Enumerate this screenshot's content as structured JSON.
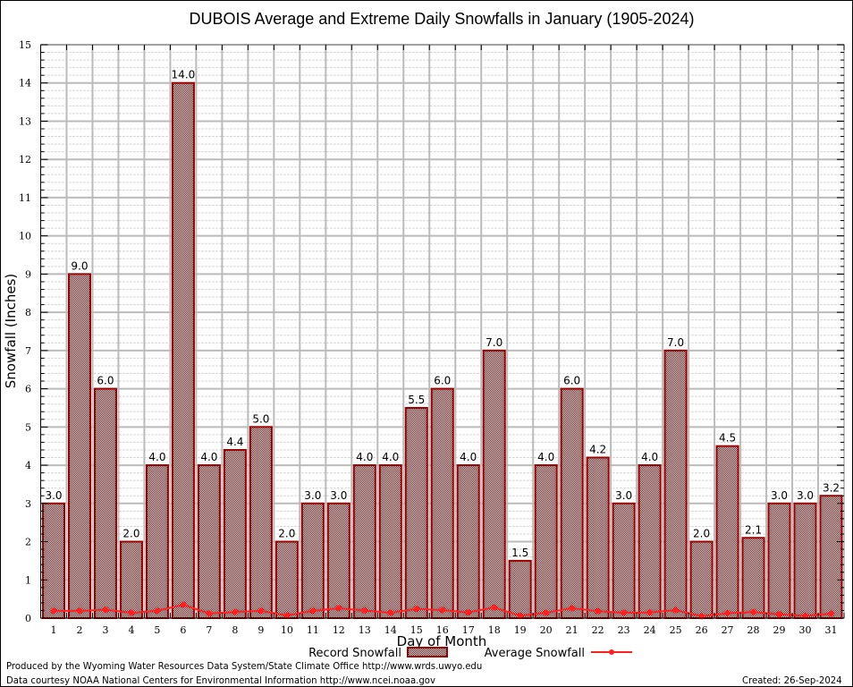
{
  "chart_data": {
    "type": "bar",
    "title": "DUBOIS Average and Extreme Daily Snowfalls in January (1905-2024)",
    "xlabel": "Day of Month",
    "ylabel": "Snowfall (Inches)",
    "ylim": [
      0,
      15
    ],
    "yticks": [
      "0",
      "1",
      "2",
      "3",
      "4",
      "5",
      "6",
      "7",
      "8",
      "9",
      "10",
      "11",
      "12",
      "13",
      "14",
      "15"
    ],
    "grid": true,
    "categories": [
      "1",
      "2",
      "3",
      "4",
      "5",
      "6",
      "7",
      "8",
      "9",
      "10",
      "11",
      "12",
      "13",
      "14",
      "15",
      "16",
      "17",
      "18",
      "19",
      "20",
      "21",
      "22",
      "23",
      "24",
      "25",
      "26",
      "27",
      "28",
      "29",
      "30",
      "31"
    ],
    "series": [
      {
        "name": "Record Snowfall",
        "type": "bar",
        "color": "#990000",
        "values": [
          3.0,
          9.0,
          6.0,
          2.0,
          4.0,
          14.0,
          4.0,
          4.4,
          5.0,
          2.0,
          3.0,
          3.0,
          4.0,
          4.0,
          5.5,
          6.0,
          4.0,
          7.0,
          1.5,
          4.0,
          6.0,
          4.2,
          3.0,
          4.0,
          7.0,
          2.0,
          4.5,
          2.1,
          3.0,
          3.0,
          3.2
        ],
        "labels": [
          "3.0",
          "9.0",
          "6.0",
          "2.0",
          "4.0",
          "14.0",
          "4.0",
          "4.4",
          "5.0",
          "2.0",
          "3.0",
          "3.0",
          "4.0",
          "4.0",
          "5.5",
          "6.0",
          "4.0",
          "7.0",
          "1.5",
          "4.0",
          "6.0",
          "4.2",
          "3.0",
          "4.0",
          "7.0",
          "2.0",
          "4.5",
          "2.1",
          "3.0",
          "3.0",
          "3.2"
        ]
      },
      {
        "name": "Average Snowfall",
        "type": "line",
        "color": "#ff2020",
        "values": [
          0.19,
          0.19,
          0.22,
          0.14,
          0.19,
          0.35,
          0.12,
          0.16,
          0.19,
          0.07,
          0.19,
          0.26,
          0.2,
          0.14,
          0.24,
          0.21,
          0.15,
          0.28,
          0.06,
          0.14,
          0.26,
          0.18,
          0.14,
          0.15,
          0.21,
          0.05,
          0.13,
          0.16,
          0.1,
          0.06,
          0.12
        ]
      }
    ],
    "legend": {
      "placement": "bottom-center",
      "entries": [
        "Record Snowfall",
        "Average Snowfall"
      ]
    }
  },
  "footer": {
    "produced_by": "Produced by the Wyoming Water Resources Data System/State Climate Office http://www.wrds.uwyo.edu",
    "data_courtesy": "Data courtesy NOAA National Centers for Environmental Information http://www.ncei.noaa.gov",
    "created": "Created: 26-Sep-2024"
  }
}
